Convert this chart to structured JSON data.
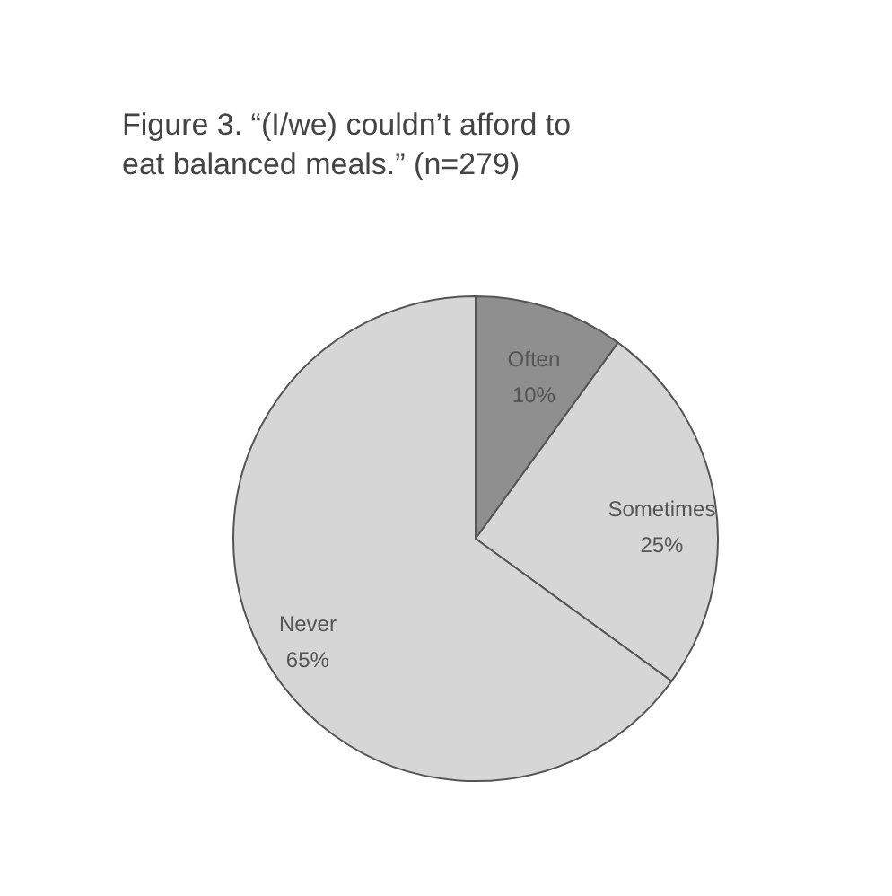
{
  "chart_data": {
    "type": "pie",
    "title": "Figure 3. “(I/we) couldn’t afford to eat balanced meals.” (n=279)",
    "categories": [
      "Often",
      "Sometimes",
      "Never"
    ],
    "values": [
      10,
      25,
      65
    ],
    "colors": [
      "#8f8f8f",
      "#d6d6d6",
      "#d6d6d6"
    ],
    "value_labels": [
      "10%",
      "25%",
      "65%"
    ],
    "legend": false
  }
}
